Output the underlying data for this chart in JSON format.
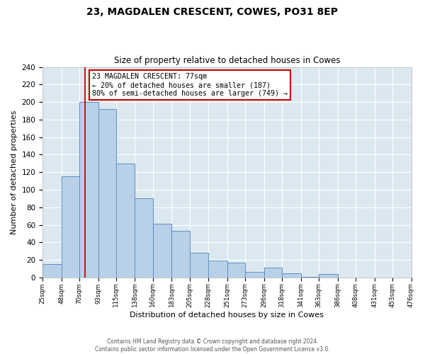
{
  "title": "23, MAGDALEN CRESCENT, COWES, PO31 8EP",
  "subtitle": "Size of property relative to detached houses in Cowes",
  "xlabel": "Distribution of detached houses by size in Cowes",
  "ylabel": "Number of detached properties",
  "bar_values": [
    15,
    115,
    200,
    192,
    130,
    90,
    61,
    53,
    28,
    19,
    17,
    6,
    11,
    5,
    1,
    4
  ],
  "bin_edges": [
    25,
    48,
    70,
    93,
    115,
    138,
    160,
    183,
    205,
    228,
    251,
    273,
    296,
    318,
    341,
    363,
    386,
    408,
    431,
    453,
    476
  ],
  "bin_labels": [
    "25sqm",
    "48sqm",
    "70sqm",
    "93sqm",
    "115sqm",
    "138sqm",
    "160sqm",
    "183sqm",
    "205sqm",
    "228sqm",
    "251sqm",
    "273sqm",
    "296sqm",
    "318sqm",
    "341sqm",
    "363sqm",
    "386sqm",
    "408sqm",
    "431sqm",
    "453sqm",
    "476sqm"
  ],
  "bar_color": "#b8d0e8",
  "bar_edge_color": "#6090c0",
  "ylim": [
    0,
    240
  ],
  "yticks": [
    0,
    20,
    40,
    60,
    80,
    100,
    120,
    140,
    160,
    180,
    200,
    220,
    240
  ],
  "property_line_x": 77,
  "property_line_color": "#cc0000",
  "annotation_text": "23 MAGDALEN CRESCENT: 77sqm\n← 20% of detached houses are smaller (187)\n80% of semi-detached houses are larger (749) →",
  "footer_line1": "Contains HM Land Registry data © Crown copyright and database right 2024.",
  "footer_line2": "Contains public sector information licensed under the Open Government Licence v3.0.",
  "background_color": "#dce8f0",
  "grid_color": "#ffffff",
  "fig_facecolor": "#ffffff"
}
